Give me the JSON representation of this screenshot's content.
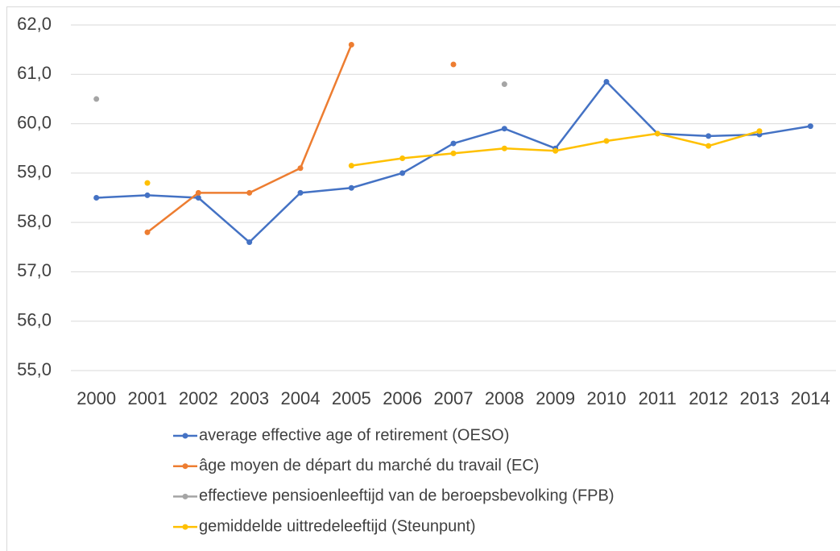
{
  "chart_data": {
    "type": "line",
    "categories": [
      "2000",
      "2001",
      "2002",
      "2003",
      "2004",
      "2005",
      "2006",
      "2007",
      "2008",
      "2009",
      "2010",
      "2011",
      "2012",
      "2013",
      "2014"
    ],
    "series": [
      {
        "name": "average effective age of retirement (OESO)",
        "color": "#4472c4",
        "values": [
          58.5,
          58.55,
          58.5,
          57.6,
          58.6,
          58.7,
          59.0,
          59.6,
          59.9,
          59.5,
          60.85,
          59.8,
          59.75,
          59.78,
          59.95
        ]
      },
      {
        "name": "âge moyen de départ du marché du travail (EC)",
        "color": "#ed7d31",
        "values": [
          null,
          57.8,
          58.6,
          58.6,
          59.1,
          61.6,
          null,
          61.2,
          null,
          null,
          null,
          null,
          null,
          null,
          null
        ]
      },
      {
        "name": "effectieve pensioenleeftijd van de beroepsbevolking (FPB)",
        "color": "#a5a5a5",
        "values": [
          60.5,
          null,
          null,
          null,
          null,
          null,
          null,
          null,
          60.8,
          null,
          null,
          null,
          null,
          null,
          null
        ]
      },
      {
        "name": "gemiddelde uittredeleeftijd (Steunpunt)",
        "color": "#ffc000",
        "values": [
          null,
          58.8,
          null,
          null,
          null,
          59.15,
          59.3,
          59.4,
          59.5,
          59.45,
          59.65,
          59.8,
          59.55,
          59.85,
          null
        ]
      }
    ],
    "ylim": [
      55,
      62
    ],
    "yticks": [
      {
        "value": 55,
        "label": "55,0"
      },
      {
        "value": 56,
        "label": "56,0"
      },
      {
        "value": 57,
        "label": "57,0"
      },
      {
        "value": 58,
        "label": "58,0"
      },
      {
        "value": 59,
        "label": "59,0"
      },
      {
        "value": 60,
        "label": "60,0"
      },
      {
        "value": 61,
        "label": "61,0"
      },
      {
        "value": 62,
        "label": "62,0"
      }
    ],
    "grid": true
  }
}
